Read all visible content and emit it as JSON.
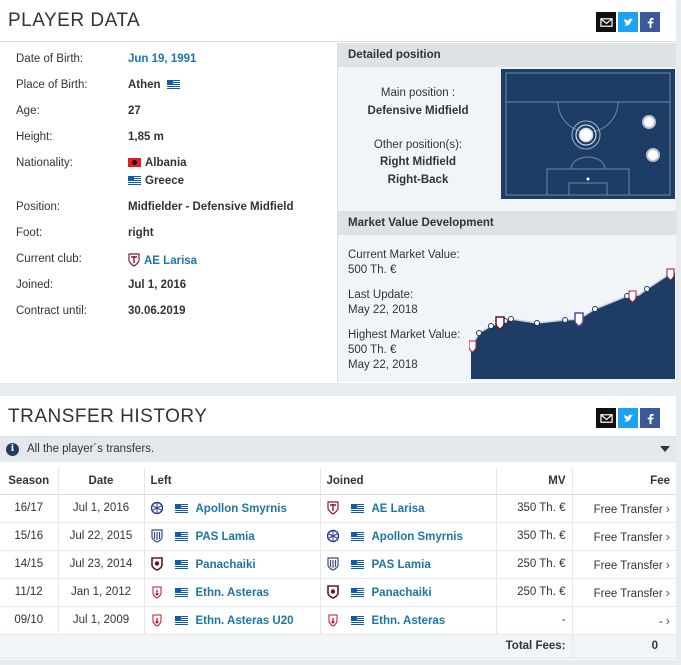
{
  "player_data": {
    "title": "PLAYER DATA",
    "rows": [
      {
        "label": "Date of Birth:",
        "value": "Jun 19, 1991",
        "link": true
      },
      {
        "label": "Place of Birth:",
        "value": "Athen",
        "flag": "gr"
      },
      {
        "label": "Age:",
        "value": "27"
      },
      {
        "label": "Height:",
        "value": "1,85 m"
      },
      {
        "label": "Nationality:",
        "value": "Albania",
        "flag": "al",
        "value2": "Greece",
        "flag2": "gr"
      },
      {
        "label": "Position:",
        "value": "Midfielder - Defensive Midfield"
      },
      {
        "label": "Foot:",
        "value": "right"
      },
      {
        "label": "Current club:",
        "value": "AE Larisa",
        "link": true,
        "crest": true
      },
      {
        "label": "Joined:",
        "value": "Jul 1, 2016"
      },
      {
        "label": "Contract until:",
        "value": "30.06.2019"
      }
    ]
  },
  "detailed_position": {
    "title": "Detailed position",
    "main_label": "Main position :",
    "main_value": "Defensive Midfield",
    "other_label": "Other position(s):",
    "other_values": [
      "Right Midfield",
      "Right-Back"
    ]
  },
  "market_value": {
    "title": "Market Value Development",
    "current_label": "Current Market Value:",
    "current_value": "500 Th. €",
    "update_label": "Last Update:",
    "update_value": "May 22, 2018",
    "highest_label": "Highest Market Value:",
    "highest_value": "500 Th. €",
    "highest_date": "May 22, 2018"
  },
  "transfer_history": {
    "title": "TRANSFER HISTORY",
    "info": "All the player´s transfers.",
    "columns": [
      "Season",
      "Date",
      "Left",
      "Joined",
      "MV",
      "Fee"
    ],
    "rows": [
      {
        "season": "16/17",
        "date": "Jul 1, 2016",
        "left": "Apollon Smyrnis",
        "joined": "AE Larisa",
        "mv": "350 Th. €",
        "fee": "Free Transfer"
      },
      {
        "season": "15/16",
        "date": "Jul 22, 2015",
        "left": "PAS Lamia",
        "joined": "Apollon Smyrnis",
        "mv": "350 Th. €",
        "fee": "Free Transfer"
      },
      {
        "season": "14/15",
        "date": "Jul 23, 2014",
        "left": "Panachaiki",
        "joined": "PAS Lamia",
        "mv": "250 Th. €",
        "fee": "Free Transfer"
      },
      {
        "season": "11/12",
        "date": "Jan 1, 2012",
        "left": "Ethn. Asteras",
        "joined": "Panachaiki",
        "mv": "250 Th. €",
        "fee": "Free Transfer"
      },
      {
        "season": "09/10",
        "date": "Jul 1, 2009",
        "left": "Ethn. Asteras U20",
        "joined": "Ethn. Asteras",
        "mv": "-",
        "fee": "-"
      }
    ],
    "total_label": "Total Fees:",
    "total_value": "0"
  },
  "colors": {
    "link": "#1d75a3",
    "pitch": "#1d3c66",
    "twitter": "#1da1f2",
    "facebook": "#3b5998"
  }
}
